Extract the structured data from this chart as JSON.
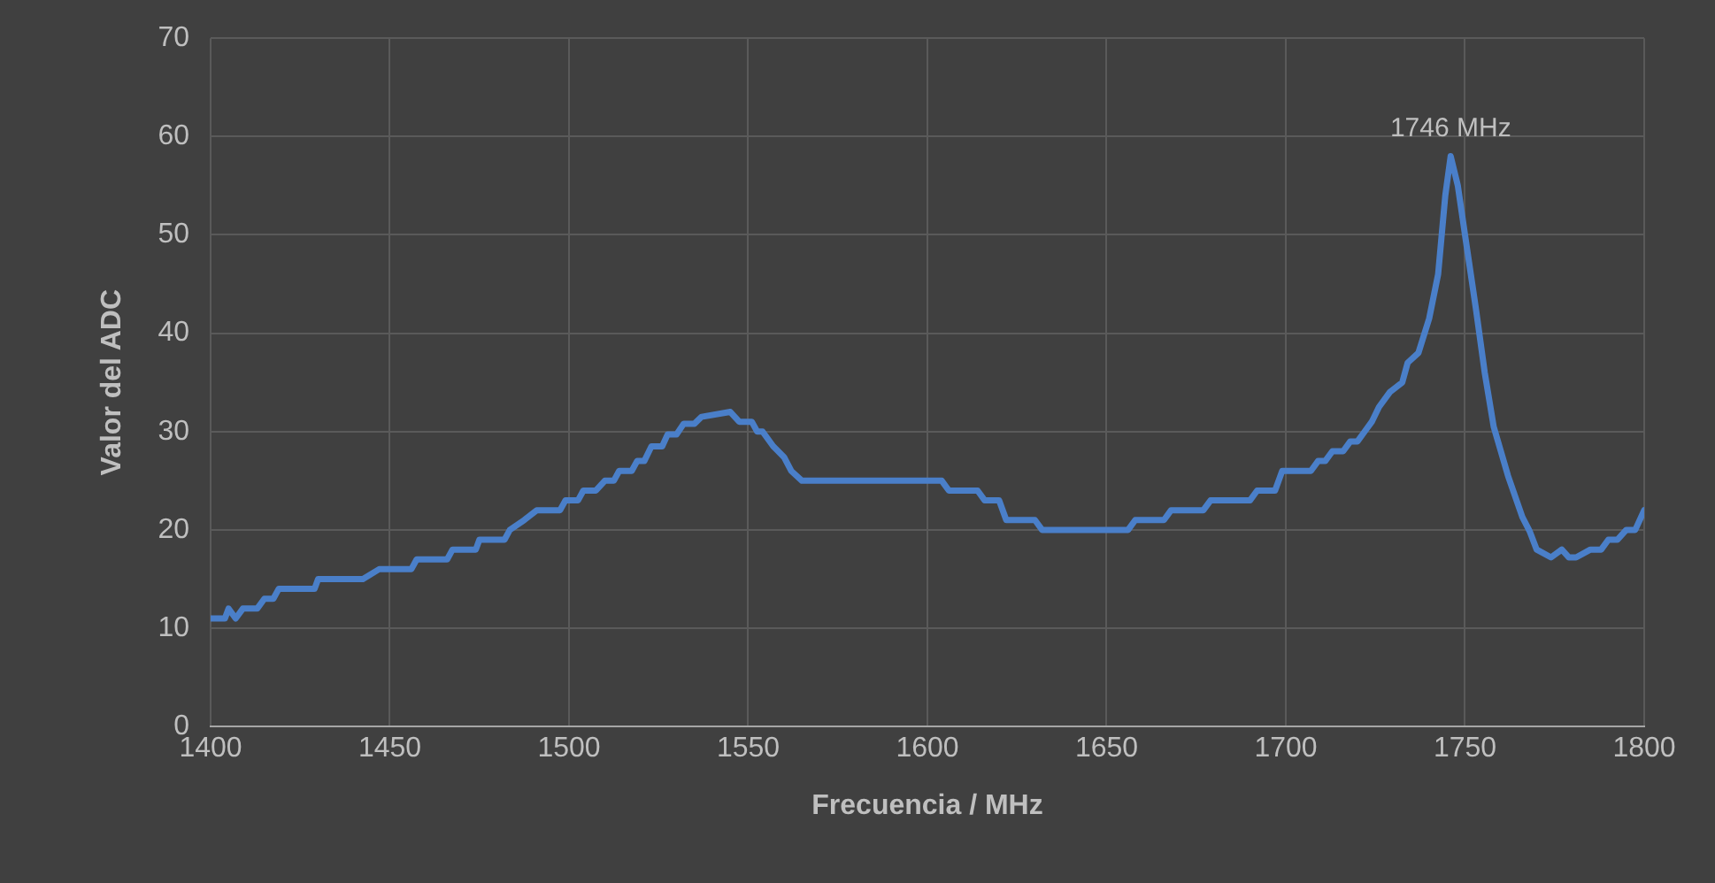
{
  "chart_data": {
    "type": "line",
    "xlabel": "Frecuencia / MHz",
    "ylabel": "Valor del ADC",
    "xlim": [
      1400,
      1800
    ],
    "xticks": [
      1400,
      1450,
      1500,
      1550,
      1600,
      1650,
      1700,
      1750,
      1800
    ],
    "ylim": [
      0,
      70
    ],
    "yticks": [
      0,
      10,
      20,
      30,
      40,
      50,
      60,
      70
    ],
    "grid": true,
    "marker": "none",
    "line_style": "solid",
    "annotations": [
      {
        "text": "1746 MHz",
        "x": 1746,
        "y": 58
      }
    ],
    "series": [
      {
        "color": "#4a7fc9",
        "x": [
          1400,
          1404,
          1405,
          1407,
          1409,
          1413,
          1415,
          1417.5,
          1419,
          1429,
          1430,
          1442.5,
          1447,
          1456,
          1457.5,
          1466,
          1467.5,
          1474,
          1475,
          1482,
          1483.5,
          1487.5,
          1491,
          1497.5,
          1499,
          1502.5,
          1504,
          1507.5,
          1510,
          1512.5,
          1514,
          1517.5,
          1519,
          1521,
          1523,
          1526,
          1527.5,
          1530,
          1532,
          1535,
          1537,
          1545,
          1547.5,
          1551,
          1552.5,
          1554,
          1557,
          1560,
          1562,
          1565,
          1604,
          1606,
          1614,
          1616,
          1620,
          1622,
          1630,
          1632,
          1656,
          1658,
          1666,
          1668,
          1677,
          1679,
          1690,
          1692,
          1697,
          1699,
          1707,
          1709,
          1711,
          1713,
          1716,
          1718,
          1720,
          1722,
          1724,
          1726,
          1729,
          1732.5,
          1734,
          1737,
          1740,
          1742.5,
          1744.5,
          1746,
          1748,
          1750,
          1753,
          1755.5,
          1758,
          1762,
          1766,
          1768,
          1770,
          1774,
          1777,
          1779,
          1781,
          1785,
          1788,
          1790,
          1792.5,
          1795,
          1797.5,
          1800
        ],
        "values": [
          11,
          11,
          12,
          11,
          12,
          12,
          13,
          13,
          14,
          14,
          15,
          15,
          16,
          16,
          17,
          17,
          18,
          18,
          19,
          19,
          20,
          21,
          22,
          22,
          23,
          23,
          24,
          24,
          25,
          25,
          26,
          26,
          27,
          27,
          28.5,
          28.5,
          29.7,
          29.7,
          30.8,
          30.8,
          31.5,
          32,
          31,
          31,
          30,
          30,
          28.5,
          27.4,
          26,
          25,
          25,
          24,
          24,
          23,
          23,
          21,
          21,
          20,
          20,
          21,
          21,
          22,
          22,
          23,
          23,
          24,
          24,
          26,
          26,
          27,
          27,
          28,
          28,
          29,
          29,
          30,
          31,
          32.5,
          34,
          35,
          37,
          38,
          41.5,
          46,
          54,
          58,
          55,
          50,
          42.6,
          36,
          30.5,
          25.5,
          21.3,
          19.9,
          18,
          17.2,
          18,
          17.2,
          17.2,
          18,
          18,
          19,
          19,
          20,
          20,
          22
        ]
      }
    ]
  }
}
